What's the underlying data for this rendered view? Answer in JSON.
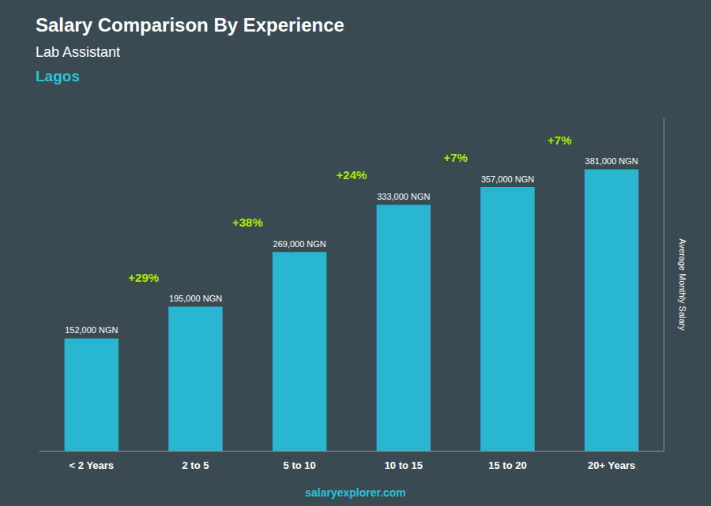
{
  "chart_data": {
    "type": "bar",
    "title": "Salary Comparison By Experience",
    "subtitle": "Lab Assistant",
    "location": "Lagos",
    "ylabel": "Average Monthly Salary",
    "categories": [
      "< 2 Years",
      "2 to 5",
      "5 to 10",
      "10 to 15",
      "15 to 20",
      "20+ Years"
    ],
    "values": [
      152000,
      195000,
      269000,
      333000,
      357000,
      381000
    ],
    "value_labels": [
      "152,000 NGN",
      "195,000 NGN",
      "269,000 NGN",
      "333,000 NGN",
      "357,000 NGN",
      "381,000 NGN"
    ],
    "data_labels": true,
    "annotations": [
      "+29%",
      "+38%",
      "+24%",
      "+7%",
      "+7%"
    ],
    "footer": "salaryexplorer.com",
    "color": "#29b6d0",
    "ylim": [
      0,
      450000
    ],
    "grid": false,
    "tick_labels": "x"
  }
}
